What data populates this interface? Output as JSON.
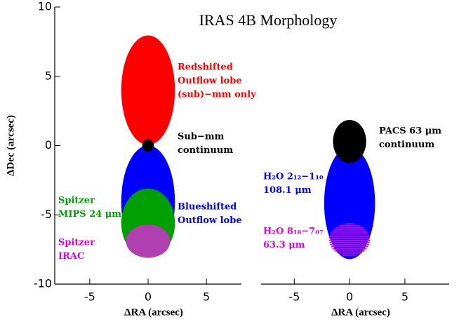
{
  "chart_data": [
    {
      "type": "ellipse",
      "title": "IRAS 4B Morphology",
      "xlabel": "ΔRA (arcsec)",
      "ylabel": "ΔDec (arcsec)",
      "xlim": [
        -8,
        8
      ],
      "ylim": [
        -10,
        10
      ],
      "xticks": [
        -5,
        0,
        5
      ],
      "yticks": [
        -10,
        -5,
        0,
        5,
        10
      ],
      "shapes": [
        {
          "color": "#ff0000",
          "x": 0,
          "y": 4,
          "rx": 2.3,
          "ry": 3.95
        },
        {
          "color": "#0000ff",
          "x": 0,
          "y": -4.05,
          "rx": 2.3,
          "ry": 4.05
        },
        {
          "color": "#00a000",
          "x": 0,
          "y": -5.6,
          "rx": 2.3,
          "ry": 2.5
        },
        {
          "color": "#b040b0",
          "x": 0,
          "y": -6.9,
          "rx": 1.9,
          "ry": 1.2
        },
        {
          "color": "#000000",
          "x": 0,
          "y": 0,
          "rx": 0.5,
          "ry": 0.45
        }
      ],
      "annotations": [
        {
          "color": "#ff0000",
          "lines": [
            "Redshifted",
            "Outflow lobe",
            "(sub)−mm only"
          ]
        },
        {
          "color": "#000000",
          "lines": [
            "Sub−mm",
            "continuum"
          ]
        },
        {
          "color": "#00a000",
          "lines": [
            "Spitzer",
            "MIPS 24 μm"
          ]
        },
        {
          "color": "#0000ff",
          "lines": [
            "Blueshifted",
            "Outflow lobe"
          ]
        },
        {
          "color": "#e000e0",
          "lines": [
            "Spitzer",
            "IRAC"
          ]
        }
      ]
    },
    {
      "type": "ellipse",
      "xlabel": "ΔRA (arcsec)",
      "xlim": [
        -8,
        9
      ],
      "ylim": [
        -10,
        10
      ],
      "xticks": [
        -5,
        0,
        5
      ],
      "shapes": [
        {
          "color": "#0000ff",
          "x": 0,
          "y": -4.15,
          "rx": 2.3,
          "ry": 4.05
        },
        {
          "color": "#e000e0",
          "x": 0,
          "y": -6.8,
          "rx": 1.85,
          "ry": 1.2,
          "hatch": true
        },
        {
          "color": "#000000",
          "x": 0,
          "y": 0.3,
          "rx": 1.5,
          "ry": 1.55
        }
      ],
      "annotations": [
        {
          "color": "#000000",
          "lines": [
            "PACS 63 μm",
            "continuum"
          ]
        },
        {
          "color": "#0000ff",
          "lines": [
            "H₂O 2₁₂−1₁₀",
            "108.1 μm"
          ]
        },
        {
          "color": "#e000e0",
          "lines": [
            "H₂O 8₁₈−7₀₇",
            "63.3 μm"
          ]
        }
      ]
    }
  ]
}
